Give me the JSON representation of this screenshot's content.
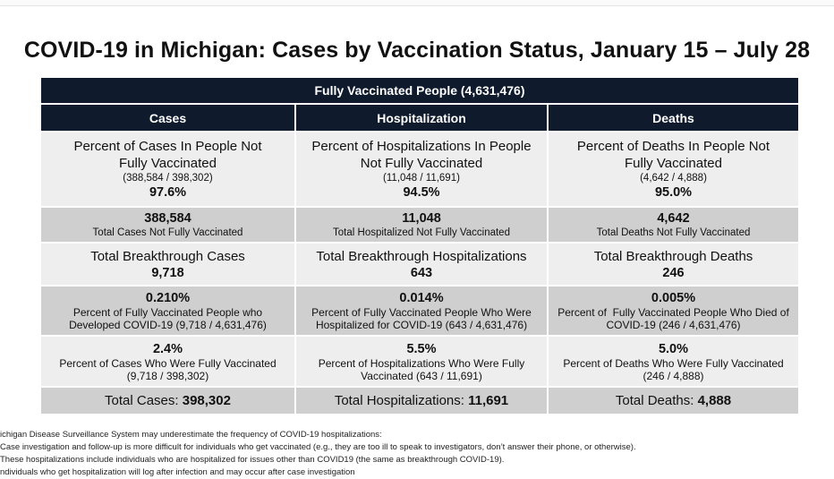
{
  "title": "COVID-19 in Michigan: Cases by Vaccination Status, January 15 – July 28",
  "banner": "Fully Vaccinated People (4,631,476)",
  "columns": [
    "Cases",
    "Hospitalization",
    "Deaths"
  ],
  "rows": {
    "percent_not_vaccinated": [
      {
        "label": "Percent of Cases In People Not Fully Vaccinated",
        "fraction": "(388,584 / 398,302)",
        "value": "97.6%"
      },
      {
        "label": "Percent of Hospitalizations In People Not Fully Vaccinated",
        "fraction": "(11,048 / 11,691)",
        "value": "94.5%"
      },
      {
        "label": "Percent of Deaths In People Not Fully Vaccinated",
        "fraction": "(4,642 / 4,888)",
        "value": "95.0%"
      }
    ],
    "total_not_vaccinated": [
      {
        "value": "388,584",
        "label": "Total Cases Not Fully Vaccinated"
      },
      {
        "value": "11,048",
        "label": "Total Hospitalized Not Fully Vaccinated"
      },
      {
        "value": "4,642",
        "label": "Total Deaths Not Fully Vaccinated"
      }
    ],
    "breakthrough": [
      {
        "label": "Total Breakthrough Cases",
        "value": "9,718"
      },
      {
        "label": "Total Breakthrough Hospitalizations",
        "value": "643"
      },
      {
        "label": "Total Breakthrough Deaths",
        "value": "246"
      }
    ],
    "percent_of_vaccinated": [
      {
        "value": "0.210%",
        "line1": "Percent of Fully Vaccinated People who",
        "line2": "Developed COVID-19 (9,718 / 4,631,476)"
      },
      {
        "value": "0.014%",
        "line1": "Percent of Fully Vaccinated People Who Were",
        "line2": "Hospitalized for COVID-19 (643 / 4,631,476)"
      },
      {
        "value": "0.005%",
        "line1": "Percent of  Fully Vaccinated People Who Died of",
        "line2": "COVID-19 (246 / 4,631,476)"
      }
    ],
    "percent_fully_vaccinated": [
      {
        "value": "2.4%",
        "line1": "Percent of Cases Who Were Fully Vaccinated",
        "line2": "(9,718 / 398,302)"
      },
      {
        "value": "5.5%",
        "line1": "Percent of Hospitalizations Who Were Fully",
        "line2": "Vaccinated (643 / 11,691)"
      },
      {
        "value": "5.0%",
        "line1": "Percent of Deaths Who Were Fully Vaccinated",
        "line2": "(246 / 4,888)"
      }
    ],
    "totals": [
      {
        "label": "Total Cases: ",
        "value": "398,302"
      },
      {
        "label": "Total Hospitalizations: ",
        "value": "11,691"
      },
      {
        "label": "Total Deaths: ",
        "value": "4,888"
      }
    ]
  },
  "notes": [
    "ichigan Disease Surveillance System may underestimate the frequency of COVID-19 hospitalizations:",
    "Case investigation and follow-up is more difficult for individuals who get vaccinated (e.g., they are too ill to speak to investigators, don’t answer their phone, or otherwise).",
    "These hospitalizations include individuals who are hospitalized for issues other than COVID19 (the same as breakthrough COVID-19).",
    "ndividuals who get hospitalization will log after infection and may occur after case investigation"
  ]
}
